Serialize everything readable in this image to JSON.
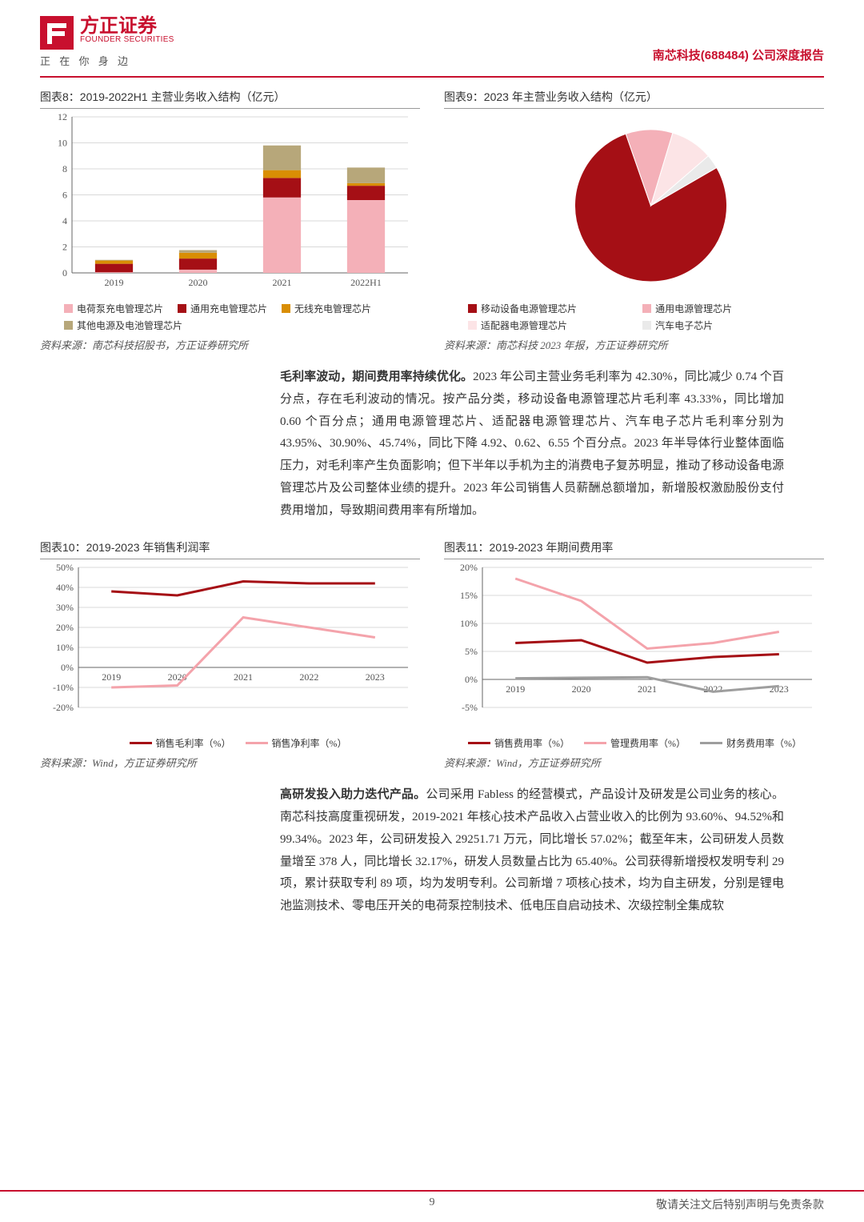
{
  "header": {
    "logo_cn": "方正证券",
    "logo_en": "FOUNDER SECURITIES",
    "tagline": "正 在 你 身 边",
    "company": "南芯科技(688484)",
    "report_type": "公司深度报告"
  },
  "chart8": {
    "type": "bar-stacked",
    "title": "图表8：2019-2022H1 主营业务收入结构（亿元）",
    "categories": [
      "2019",
      "2020",
      "2021",
      "2022H1"
    ],
    "ylim": [
      0,
      12
    ],
    "ytick_step": 2,
    "series": [
      {
        "name": "电荷泵充电管理芯片",
        "color": "#f4b0b8",
        "values": [
          0.05,
          0.25,
          5.8,
          5.6
        ]
      },
      {
        "name": "通用充电管理芯片",
        "color": "#a50f15",
        "values": [
          0.65,
          0.85,
          1.5,
          1.1
        ]
      },
      {
        "name": "无线充电管理芯片",
        "color": "#d98e04",
        "values": [
          0.25,
          0.45,
          0.6,
          0.2
        ]
      },
      {
        "name": "其他电源及电池管理芯片",
        "color": "#b7a77a",
        "values": [
          0.05,
          0.2,
          1.9,
          1.2
        ]
      }
    ],
    "axis_color": "#666",
    "grid_color": "#d9d9d9",
    "bar_width": 0.45,
    "source": "资料来源：南芯科技招股书，方正证券研究所"
  },
  "chart9": {
    "type": "pie",
    "title": "图表9：2023 年主营业务收入结构（亿元）",
    "slices": [
      {
        "name": "移动设备电源管理芯片",
        "color": "#a50f15",
        "value": 78
      },
      {
        "name": "通用电源管理芯片",
        "color": "#f4b0b8",
        "value": 10
      },
      {
        "name": "适配器电源管理芯片",
        "color": "#fce4e6",
        "value": 9
      },
      {
        "name": "汽车电子芯片",
        "color": "#eaeaea",
        "value": 3
      }
    ],
    "start_angle": -30,
    "source": "资料来源：南芯科技 2023 年报，方正证券研究所"
  },
  "para1": {
    "lead": "毛利率波动，期间费用率持续优化。",
    "body": "2023 年公司主营业务毛利率为 42.30%，同比减少 0.74 个百分点，存在毛利波动的情况。按产品分类，移动设备电源管理芯片毛利率 43.33%，同比增加 0.60 个百分点；通用电源管理芯片、适配器电源管理芯片、汽车电子芯片毛利率分别为 43.95%、30.90%、45.74%，同比下降 4.92、0.62、6.55 个百分点。2023 年半导体行业整体面临压力，对毛利率产生负面影响；但下半年以手机为主的消费电子复苏明显，推动了移动设备电源管理芯片及公司整体业绩的提升。2023 年公司销售人员薪酬总额增加，新增股权激励股份支付费用增加，导致期间费用率有所增加。"
  },
  "chart10": {
    "type": "line",
    "title": "图表10：2019-2023 年销售利润率",
    "categories": [
      "2019",
      "2020",
      "2021",
      "2022",
      "2023"
    ],
    "ylim": [
      -20,
      50
    ],
    "ytick_step": 10,
    "ysuffix": "%",
    "series": [
      {
        "name": "销售毛利率（%）",
        "color": "#a50f15",
        "width": 3,
        "values": [
          38,
          36,
          43,
          42,
          42
        ]
      },
      {
        "name": "销售净利率（%）",
        "color": "#f4a3ab",
        "width": 3,
        "values": [
          -10,
          -9,
          25,
          20,
          15
        ]
      }
    ],
    "axis_color": "#666",
    "grid_color": "#d9d9d9",
    "source": "资料来源：Wind，方正证券研究所"
  },
  "chart11": {
    "type": "line",
    "title": "图表11：2019-2023 年期间费用率",
    "categories": [
      "2019",
      "2020",
      "2021",
      "2022",
      "2023"
    ],
    "ylim": [
      -5,
      20
    ],
    "ytick_step": 5,
    "ysuffix": "%",
    "series": [
      {
        "name": "销售费用率（%）",
        "color": "#a50f15",
        "width": 3,
        "values": [
          6.5,
          7,
          3,
          4,
          4.5
        ]
      },
      {
        "name": "管理费用率（%）",
        "color": "#f4a3ab",
        "width": 3,
        "values": [
          18,
          14,
          5.5,
          6.5,
          8.5
        ]
      },
      {
        "name": "财务费用率（%）",
        "color": "#9e9e9e",
        "width": 3,
        "values": [
          0.2,
          0.3,
          0.4,
          -2.2,
          -1.2
        ]
      }
    ],
    "axis_color": "#666",
    "grid_color": "#d9d9d9",
    "source": "资料来源：Wind，方正证券研究所"
  },
  "para2": {
    "lead": "高研发投入助力迭代产品。",
    "body": "公司采用 Fabless 的经营模式，产品设计及研发是公司业务的核心。南芯科技高度重视研发，2019-2021 年核心技术产品收入占营业收入的比例为 93.60%、94.52%和 99.34%。2023 年，公司研发投入 29251.71 万元，同比增长 57.02%；截至年末，公司研发人员数量增至 378 人，同比增长 32.17%，研发人员数量占比为 65.40%。公司获得新增授权发明专利 29 项，累计获取专利 89 项，均为发明专利。公司新增 7 项核心技术，均为自主研发，分别是锂电池监测技术、零电压开关的电荷泵控制技术、低电压自启动技术、次级控制全集成软"
  },
  "footer": {
    "page": "9",
    "disclaimer": "敬请关注文后特别声明与免责条款"
  }
}
